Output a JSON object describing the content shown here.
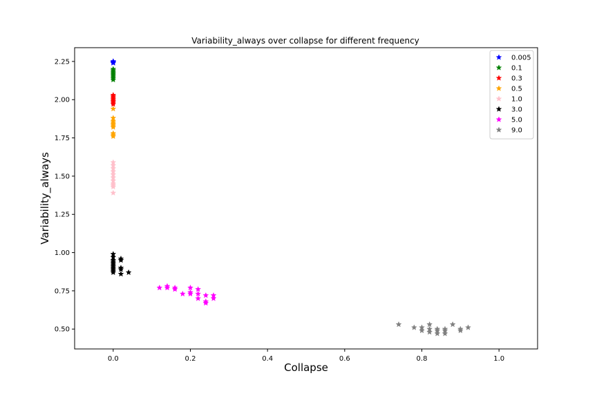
{
  "chart_data": {
    "type": "scatter",
    "title": "Variability_always over collapse for different frequency",
    "xlabel": "Collapse",
    "ylabel": "Variability_always",
    "xlim": [
      -0.1,
      1.1
    ],
    "ylim": [
      0.37,
      2.34
    ],
    "xticks": [
      0.0,
      0.2,
      0.4,
      0.6,
      0.8,
      1.0
    ],
    "xtick_labels": [
      "0.0",
      "0.2",
      "0.4",
      "0.6",
      "0.8",
      "1.0"
    ],
    "yticks": [
      0.5,
      0.75,
      1.0,
      1.25,
      1.5,
      1.75,
      2.0,
      2.25
    ],
    "ytick_labels": [
      "0.50",
      "0.75",
      "1.00",
      "1.25",
      "1.50",
      "1.75",
      "2.00",
      "2.25"
    ],
    "marker": "star",
    "grid": false,
    "legend_position": "top-right",
    "series": [
      {
        "name": "0.005",
        "color": "#0000ff",
        "points": [
          [
            0,
            2.25
          ],
          [
            0,
            2.24
          ],
          [
            0,
            2.245
          ],
          [
            0,
            2.25
          ],
          [
            0,
            2.24
          ]
        ]
      },
      {
        "name": "0.1",
        "color": "#008000",
        "points": [
          [
            0,
            2.2
          ],
          [
            0,
            2.19
          ],
          [
            0,
            2.18
          ],
          [
            0,
            2.17
          ],
          [
            0,
            2.16
          ],
          [
            0,
            2.15
          ],
          [
            0,
            2.14
          ],
          [
            0,
            2.13
          ],
          [
            0,
            2.19
          ],
          [
            0,
            2.17
          ]
        ]
      },
      {
        "name": "0.3",
        "color": "#ff0000",
        "points": [
          [
            0,
            2.03
          ],
          [
            0,
            2.02
          ],
          [
            0,
            2.01
          ],
          [
            0,
            2.0
          ],
          [
            0,
            1.99
          ],
          [
            0,
            1.98
          ],
          [
            0,
            1.97
          ],
          [
            0,
            2.02
          ],
          [
            0,
            2.0
          ],
          [
            0,
            1.99
          ]
        ]
      },
      {
        "name": "0.5",
        "color": "#ffa500",
        "points": [
          [
            0,
            1.94
          ],
          [
            0,
            1.88
          ],
          [
            0,
            1.86
          ],
          [
            0,
            1.85
          ],
          [
            0,
            1.84
          ],
          [
            0,
            1.83
          ],
          [
            0,
            1.82
          ],
          [
            0,
            1.78
          ],
          [
            0,
            1.77
          ],
          [
            0,
            1.76
          ]
        ]
      },
      {
        "name": "1.0",
        "color": "#ffc0cb",
        "points": [
          [
            0,
            1.59
          ],
          [
            0,
            1.57
          ],
          [
            0,
            1.55
          ],
          [
            0,
            1.53
          ],
          [
            0,
            1.51
          ],
          [
            0,
            1.49
          ],
          [
            0,
            1.47
          ],
          [
            0,
            1.45
          ],
          [
            0,
            1.44
          ],
          [
            0,
            1.43
          ],
          [
            0,
            1.39
          ]
        ]
      },
      {
        "name": "3.0",
        "color": "#000000",
        "points": [
          [
            0,
            0.99
          ],
          [
            0,
            0.97
          ],
          [
            0,
            0.95
          ],
          [
            0,
            0.94
          ],
          [
            0,
            0.93
          ],
          [
            0,
            0.92
          ],
          [
            0,
            0.91
          ],
          [
            0,
            0.9
          ],
          [
            0,
            0.89
          ],
          [
            0,
            0.88
          ],
          [
            0,
            0.87
          ],
          [
            0.02,
            0.96
          ],
          [
            0.02,
            0.95
          ],
          [
            0.02,
            0.9
          ],
          [
            0.02,
            0.89
          ],
          [
            0.02,
            0.86
          ],
          [
            0.04,
            0.87
          ]
        ]
      },
      {
        "name": "5.0",
        "color": "#ff00ff",
        "points": [
          [
            0.12,
            0.77
          ],
          [
            0.14,
            0.78
          ],
          [
            0.14,
            0.77
          ],
          [
            0.16,
            0.77
          ],
          [
            0.16,
            0.76
          ],
          [
            0.18,
            0.73
          ],
          [
            0.2,
            0.77
          ],
          [
            0.2,
            0.74
          ],
          [
            0.2,
            0.73
          ],
          [
            0.22,
            0.76
          ],
          [
            0.22,
            0.73
          ],
          [
            0.22,
            0.7
          ],
          [
            0.24,
            0.72
          ],
          [
            0.24,
            0.68
          ],
          [
            0.24,
            0.67
          ],
          [
            0.26,
            0.72
          ],
          [
            0.26,
            0.7
          ]
        ]
      },
      {
        "name": "9.0",
        "color": "#808080",
        "points": [
          [
            0.74,
            0.53
          ],
          [
            0.78,
            0.51
          ],
          [
            0.8,
            0.51
          ],
          [
            0.8,
            0.49
          ],
          [
            0.82,
            0.53
          ],
          [
            0.82,
            0.5
          ],
          [
            0.82,
            0.48
          ],
          [
            0.84,
            0.5
          ],
          [
            0.84,
            0.49
          ],
          [
            0.84,
            0.47
          ],
          [
            0.86,
            0.5
          ],
          [
            0.86,
            0.49
          ],
          [
            0.86,
            0.47
          ],
          [
            0.88,
            0.53
          ],
          [
            0.9,
            0.5
          ],
          [
            0.9,
            0.49
          ],
          [
            0.92,
            0.51
          ]
        ]
      }
    ]
  }
}
